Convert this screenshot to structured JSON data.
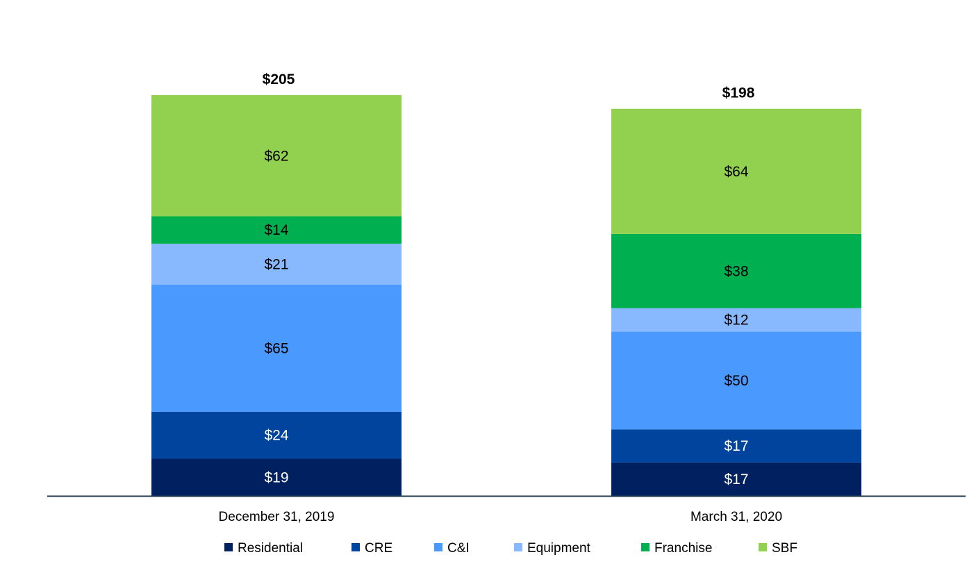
{
  "chart_data": {
    "type": "bar",
    "stacked": true,
    "title": "",
    "xlabel": "",
    "ylabel": "",
    "ylim": [
      0,
      205
    ],
    "grid": false,
    "legend_position": "bottom",
    "categories": [
      "December 31, 2019",
      "March 31, 2020"
    ],
    "totals": [
      205,
      198
    ],
    "total_labels": [
      "$205",
      "$198"
    ],
    "series": [
      {
        "name": "Residential",
        "values": [
          19,
          17
        ],
        "labels": [
          "$19",
          "$17"
        ],
        "color": "#002060",
        "label_color": "#ffffff"
      },
      {
        "name": "CRE",
        "values": [
          24,
          17
        ],
        "labels": [
          "$24",
          "$17"
        ],
        "color": "#00449e",
        "label_color": "#ffffff"
      },
      {
        "name": "C&I",
        "values": [
          65,
          50
        ],
        "labels": [
          "$65",
          "$50"
        ],
        "color": "#4a99fe",
        "label_color": "#000000"
      },
      {
        "name": "Equipment",
        "values": [
          21,
          12
        ],
        "labels": [
          "$21",
          "$12"
        ],
        "color": "#88b9fe",
        "label_color": "#000000"
      },
      {
        "name": "Franchise",
        "values": [
          14,
          38
        ],
        "labels": [
          "$14",
          "$38"
        ],
        "color": "#00af50",
        "label_color": "#000000"
      },
      {
        "name": "SBF",
        "values": [
          62,
          64
        ],
        "labels": [
          "$62",
          "$64"
        ],
        "color": "#92d050",
        "label_color": "#000000"
      }
    ],
    "axis_color": "#1f3a4d"
  }
}
